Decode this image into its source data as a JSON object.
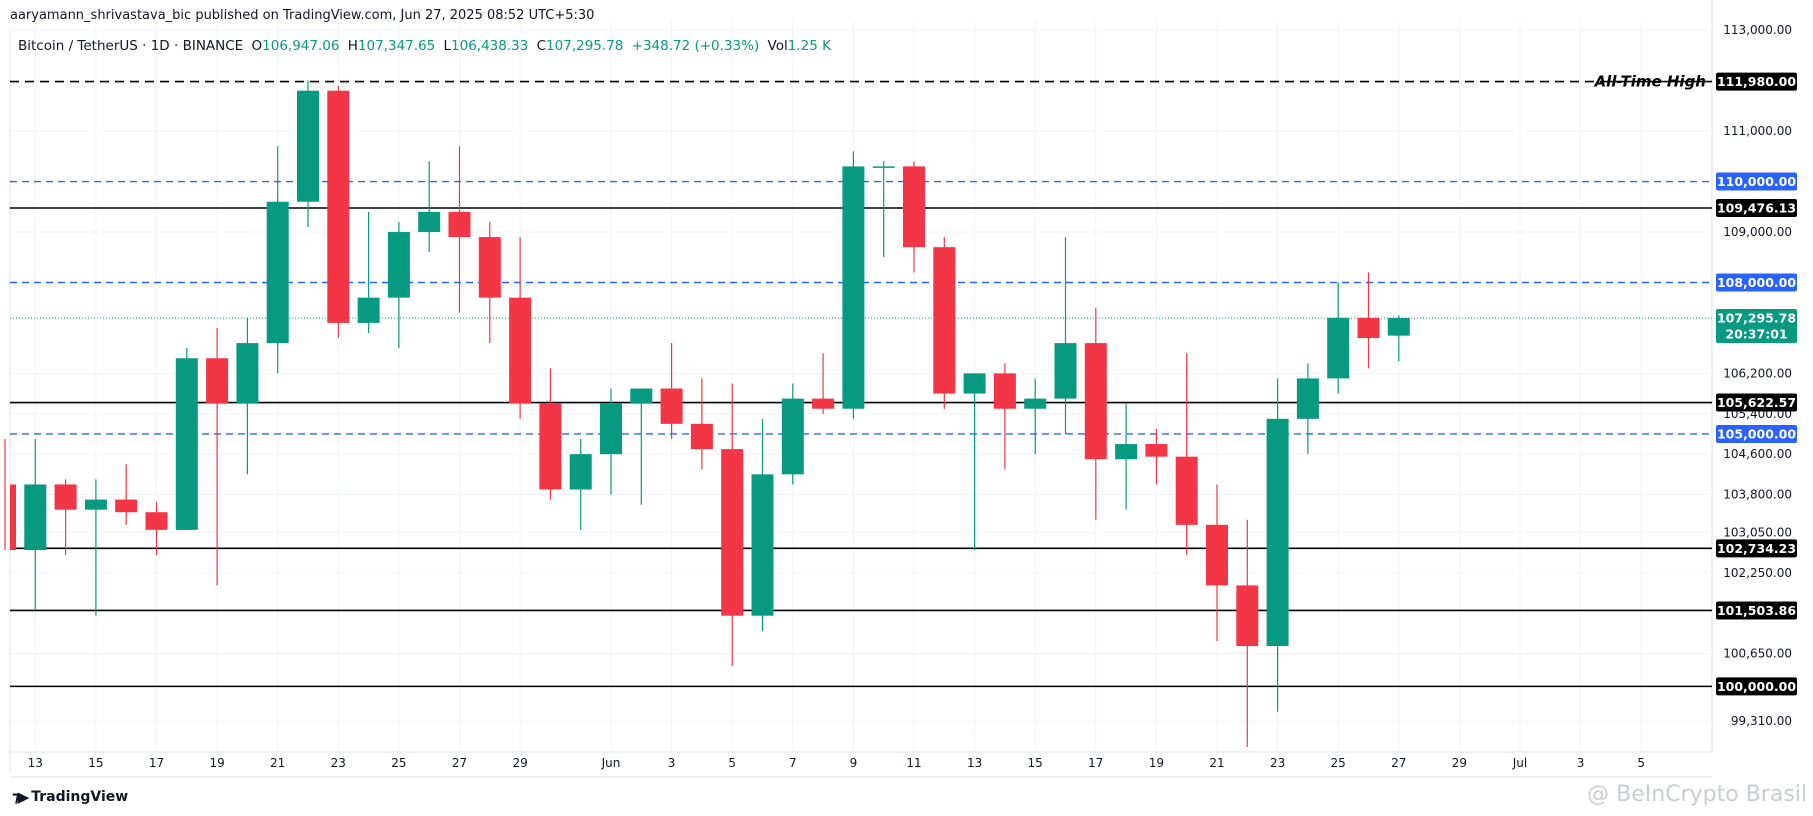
{
  "header": {
    "publisher_line": "aaryamann_shrivastava_bic published on TradingView.com, Jun 27, 2025 08:52 UTC+5:30"
  },
  "ohlc": {
    "symbol": "Bitcoin / TetherUS · 1D · BINANCE",
    "open_label": "O",
    "open": "106,947.06",
    "high_label": "H",
    "high": "107,347.65",
    "low_label": "L",
    "low": "106,438.33",
    "close_label": "C",
    "close": "107,295.78",
    "change": "+348.72 (+0.33%)",
    "vol_label": "Vol",
    "vol": "1.25 K"
  },
  "brand": {
    "logo_text": "TradingView",
    "watermark": "@ BeInCrypto Brasil"
  },
  "colors": {
    "up": "#089981",
    "down": "#f23645",
    "support_blue": "#2962ff",
    "black": "#000000"
  },
  "chart_data": {
    "type": "candlestick",
    "ylim": [
      98700,
      113200
    ],
    "y_ticks": [
      {
        "v": 113000,
        "t": "113,000.00"
      },
      {
        "v": 111000,
        "t": "111,000.00"
      },
      {
        "v": 109000,
        "t": "109,000.00"
      },
      {
        "v": 106200,
        "t": "106,200.00"
      },
      {
        "v": 105400,
        "t": "105,400.00"
      },
      {
        "v": 104600,
        "t": "104,600.00"
      },
      {
        "v": 103800,
        "t": "103,800.00"
      },
      {
        "v": 103050,
        "t": "103,050.00"
      },
      {
        "v": 102250,
        "t": "102,250.00"
      },
      {
        "v": 100650,
        "t": "100,650.00"
      },
      {
        "v": 99310,
        "t": "99,310.00"
      }
    ],
    "x_labels": [
      {
        "i": 1,
        "t": "13"
      },
      {
        "i": 3,
        "t": "15"
      },
      {
        "i": 5,
        "t": "17"
      },
      {
        "i": 7,
        "t": "19"
      },
      {
        "i": 9,
        "t": "21"
      },
      {
        "i": 11,
        "t": "23"
      },
      {
        "i": 13,
        "t": "25"
      },
      {
        "i": 15,
        "t": "27"
      },
      {
        "i": 17,
        "t": "29"
      },
      {
        "i": 20,
        "t": "Jun"
      },
      {
        "i": 22,
        "t": "3"
      },
      {
        "i": 24,
        "t": "5"
      },
      {
        "i": 26,
        "t": "7"
      },
      {
        "i": 28,
        "t": "9"
      },
      {
        "i": 30,
        "t": "11"
      },
      {
        "i": 32,
        "t": "13"
      },
      {
        "i": 34,
        "t": "15"
      },
      {
        "i": 36,
        "t": "17"
      },
      {
        "i": 38,
        "t": "19"
      },
      {
        "i": 40,
        "t": "21"
      },
      {
        "i": 42,
        "t": "23"
      },
      {
        "i": 44,
        "t": "25"
      },
      {
        "i": 46,
        "t": "27"
      },
      {
        "i": 48,
        "t": "29"
      },
      {
        "i": 50,
        "t": "Jul"
      },
      {
        "i": 52,
        "t": "3"
      },
      {
        "i": 54,
        "t": "5"
      }
    ],
    "candles": [
      {
        "d": "May 12",
        "o": 104000,
        "h": 104900,
        "l": 102700,
        "c": 102700
      },
      {
        "d": "May 13",
        "o": 102700,
        "h": 104900,
        "l": 101500,
        "c": 104000
      },
      {
        "d": "May 14",
        "o": 104000,
        "h": 104100,
        "l": 102600,
        "c": 103500
      },
      {
        "d": "May 15",
        "o": 103500,
        "h": 104100,
        "l": 101400,
        "c": 103700
      },
      {
        "d": "May 16",
        "o": 103700,
        "h": 104400,
        "l": 103200,
        "c": 103450
      },
      {
        "d": "May 17",
        "o": 103450,
        "h": 103650,
        "l": 102600,
        "c": 103100
      },
      {
        "d": "May 18",
        "o": 103100,
        "h": 106700,
        "l": 103100,
        "c": 106500
      },
      {
        "d": "May 19",
        "o": 106500,
        "h": 107100,
        "l": 102000,
        "c": 105600
      },
      {
        "d": "May 20",
        "o": 105600,
        "h": 107300,
        "l": 104200,
        "c": 106800
      },
      {
        "d": "May 21",
        "o": 106800,
        "h": 110700,
        "l": 106200,
        "c": 109600
      },
      {
        "d": "May 22",
        "o": 109600,
        "h": 112000,
        "l": 109100,
        "c": 111800
      },
      {
        "d": "May 23",
        "o": 111800,
        "h": 111900,
        "l": 106900,
        "c": 107200
      },
      {
        "d": "May 24",
        "o": 107200,
        "h": 109400,
        "l": 107000,
        "c": 107700
      },
      {
        "d": "May 25",
        "o": 107700,
        "h": 109200,
        "l": 106700,
        "c": 109000
      },
      {
        "d": "May 26",
        "o": 109000,
        "h": 110400,
        "l": 108600,
        "c": 109400
      },
      {
        "d": "May 27",
        "o": 109400,
        "h": 110700,
        "l": 107400,
        "c": 108900
      },
      {
        "d": "May 28",
        "o": 108900,
        "h": 109200,
        "l": 106800,
        "c": 107700
      },
      {
        "d": "May 29",
        "o": 107700,
        "h": 108900,
        "l": 105300,
        "c": 105600
      },
      {
        "d": "May 30",
        "o": 105600,
        "h": 106300,
        "l": 103700,
        "c": 103900
      },
      {
        "d": "May 31",
        "o": 103900,
        "h": 104900,
        "l": 103100,
        "c": 104600
      },
      {
        "d": "Jun 1",
        "o": 104600,
        "h": 105900,
        "l": 103800,
        "c": 105600
      },
      {
        "d": "Jun 2",
        "o": 105600,
        "h": 105900,
        "l": 103600,
        "c": 105900
      },
      {
        "d": "Jun 3",
        "o": 105900,
        "h": 106800,
        "l": 104900,
        "c": 105200
      },
      {
        "d": "Jun 4",
        "o": 105200,
        "h": 106100,
        "l": 104300,
        "c": 104700
      },
      {
        "d": "Jun 5",
        "o": 104700,
        "h": 106000,
        "l": 100400,
        "c": 101400
      },
      {
        "d": "Jun 6",
        "o": 101400,
        "h": 105300,
        "l": 101100,
        "c": 104200
      },
      {
        "d": "Jun 7",
        "o": 104200,
        "h": 106000,
        "l": 104000,
        "c": 105700
      },
      {
        "d": "Jun 8",
        "o": 105700,
        "h": 106600,
        "l": 105400,
        "c": 105500
      },
      {
        "d": "Jun 9",
        "o": 105500,
        "h": 110600,
        "l": 105300,
        "c": 110300
      },
      {
        "d": "Jun 10",
        "o": 110300,
        "h": 110400,
        "l": 108500,
        "c": 110300
      },
      {
        "d": "Jun 11",
        "o": 110300,
        "h": 110400,
        "l": 108200,
        "c": 108700
      },
      {
        "d": "Jun 12",
        "o": 108700,
        "h": 108900,
        "l": 105500,
        "c": 105800
      },
      {
        "d": "Jun 13",
        "o": 105800,
        "h": 106200,
        "l": 102700,
        "c": 106200
      },
      {
        "d": "Jun 14",
        "o": 106200,
        "h": 106400,
        "l": 104300,
        "c": 105500
      },
      {
        "d": "Jun 15",
        "o": 105500,
        "h": 106100,
        "l": 104600,
        "c": 105700
      },
      {
        "d": "Jun 16",
        "o": 105700,
        "h": 108900,
        "l": 105000,
        "c": 106800
      },
      {
        "d": "Jun 17",
        "o": 106800,
        "h": 107500,
        "l": 103300,
        "c": 104500
      },
      {
        "d": "Jun 18",
        "o": 104500,
        "h": 105600,
        "l": 103500,
        "c": 104800
      },
      {
        "d": "Jun 19",
        "o": 104800,
        "h": 105100,
        "l": 104000,
        "c": 104550
      },
      {
        "d": "Jun 20",
        "o": 104550,
        "h": 106600,
        "l": 102600,
        "c": 103200
      },
      {
        "d": "Jun 21",
        "o": 103200,
        "h": 104000,
        "l": 100900,
        "c": 102000
      },
      {
        "d": "Jun 22",
        "o": 102000,
        "h": 103300,
        "l": 98800,
        "c": 100800
      },
      {
        "d": "Jun 23",
        "o": 100800,
        "h": 106100,
        "l": 99500,
        "c": 105300
      },
      {
        "d": "Jun 24",
        "o": 105300,
        "h": 106400,
        "l": 104600,
        "c": 106100
      },
      {
        "d": "Jun 25",
        "o": 106100,
        "h": 108000,
        "l": 105800,
        "c": 107300
      },
      {
        "d": "Jun 26",
        "o": 107300,
        "h": 108200,
        "l": 106300,
        "c": 106900
      },
      {
        "d": "Jun 27",
        "o": 106947.06,
        "h": 107347.65,
        "l": 106438.33,
        "c": 107295.78
      }
    ],
    "levels": [
      {
        "v": 111980,
        "style": "dashed",
        "color": "#000000",
        "label": "111,980.00",
        "note": "All-Time High"
      },
      {
        "v": 110000,
        "style": "dashed",
        "color": "#2962ff",
        "label": "110,000.00"
      },
      {
        "v": 109476.13,
        "style": "solid",
        "color": "#000000",
        "label": "109,476.13"
      },
      {
        "v": 108000,
        "style": "dashed",
        "color": "#2962ff",
        "label": "108,000.00"
      },
      {
        "v": 105622.57,
        "style": "solid",
        "color": "#000000",
        "label": "105,622.57"
      },
      {
        "v": 105000,
        "style": "dashed",
        "color": "#2962ff",
        "label": "105,000.00"
      },
      {
        "v": 102734.23,
        "style": "solid",
        "color": "#000000",
        "label": "102,734.23"
      },
      {
        "v": 101503.86,
        "style": "solid",
        "color": "#000000",
        "label": "101,503.86"
      },
      {
        "v": 100000,
        "style": "solid",
        "color": "#000000",
        "label": "100,000.00"
      }
    ],
    "last_price": {
      "v": 107295.78,
      "label": "107,295.78",
      "countdown": "20:37:01",
      "color": "#089981"
    }
  }
}
